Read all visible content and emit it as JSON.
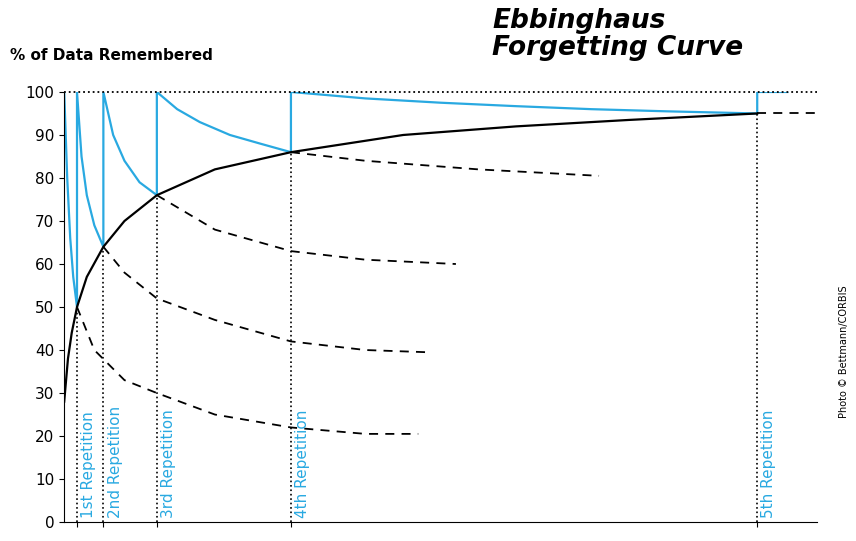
{
  "chart_data": {
    "type": "line",
    "title": "Ebbinghaus\nForgetting Curve",
    "y_label": "% of Data Remembered",
    "xlim": [
      0,
      100
    ],
    "ylim": [
      0,
      100
    ],
    "yticks": [
      0,
      10,
      20,
      30,
      40,
      50,
      60,
      70,
      80,
      90,
      100
    ],
    "xticks": [
      1.7,
      5.2,
      12.3,
      30.1,
      92
    ],
    "tick_labels": "y",
    "grid": false,
    "series": [
      {
        "color": "#29a9e1",
        "line_style": "solid",
        "x": [
          0,
          0.4,
          0.8,
          1.2,
          1.7,
          1.7,
          2.3,
          3,
          4,
          5.2,
          5.2,
          6.5,
          8,
          10,
          12.3,
          12.3,
          15,
          18,
          22,
          26,
          30.1,
          30.1,
          40,
          50,
          60,
          70,
          80,
          92,
          92,
          96
        ],
        "values": [
          100,
          80,
          66,
          57,
          50,
          100,
          85,
          76,
          69,
          64,
          100,
          90,
          84,
          79,
          76,
          100,
          96,
          93,
          90,
          88,
          86,
          100,
          98.5,
          97.5,
          96.7,
          96,
          95.5,
          95,
          100,
          100
        ]
      },
      {
        "color": "#000000",
        "line_style": "solid",
        "x": [
          0,
          0.5,
          1,
          1.7,
          3,
          5.2,
          8,
          12.3,
          20,
          30.1,
          45,
          60,
          75,
          92
        ],
        "values": [
          28,
          38,
          44,
          50,
          57,
          64,
          70,
          76,
          82,
          86,
          90,
          92,
          93.5,
          95
        ]
      },
      {
        "color": "#000000",
        "line_style": "dashed",
        "x": [
          1.7,
          4,
          8,
          12.3,
          20,
          30.1,
          40,
          47
        ],
        "values": [
          50,
          40,
          33,
          30,
          25,
          22,
          20.5,
          20.5
        ]
      },
      {
        "color": "#000000",
        "line_style": "dashed",
        "x": [
          5.2,
          8,
          12.3,
          20,
          30.1,
          40,
          48
        ],
        "values": [
          64,
          58,
          52,
          47,
          42,
          40,
          39.5
        ]
      },
      {
        "color": "#000000",
        "line_style": "dashed",
        "x": [
          12.3,
          20,
          30.1,
          40,
          52
        ],
        "values": [
          76,
          68,
          63,
          61,
          60
        ]
      },
      {
        "color": "#000000",
        "line_style": "dashed",
        "x": [
          30.1,
          40,
          55,
          71
        ],
        "values": [
          86,
          84,
          82,
          80.5
        ]
      },
      {
        "color": "#000000",
        "line_style": "dashed",
        "x": [
          92,
          100
        ],
        "values": [
          95,
          95
        ]
      }
    ],
    "annotations": [
      {
        "text": "1st Repetition",
        "x": 1.7,
        "y": 1,
        "color": "#29a9e1"
      },
      {
        "text": "2nd Repetition",
        "x": 5.2,
        "y": 1,
        "color": "#29a9e1"
      },
      {
        "text": "3rd Repetition",
        "x": 12.3,
        "y": 1,
        "color": "#29a9e1"
      },
      {
        "text": "4th Repetition",
        "x": 30.1,
        "y": 1,
        "color": "#29a9e1"
      },
      {
        "text": "5th Repetition",
        "x": 92,
        "y": 1,
        "color": "#29a9e1"
      }
    ],
    "credit": "Photo © Bettmann/CORBIS"
  }
}
